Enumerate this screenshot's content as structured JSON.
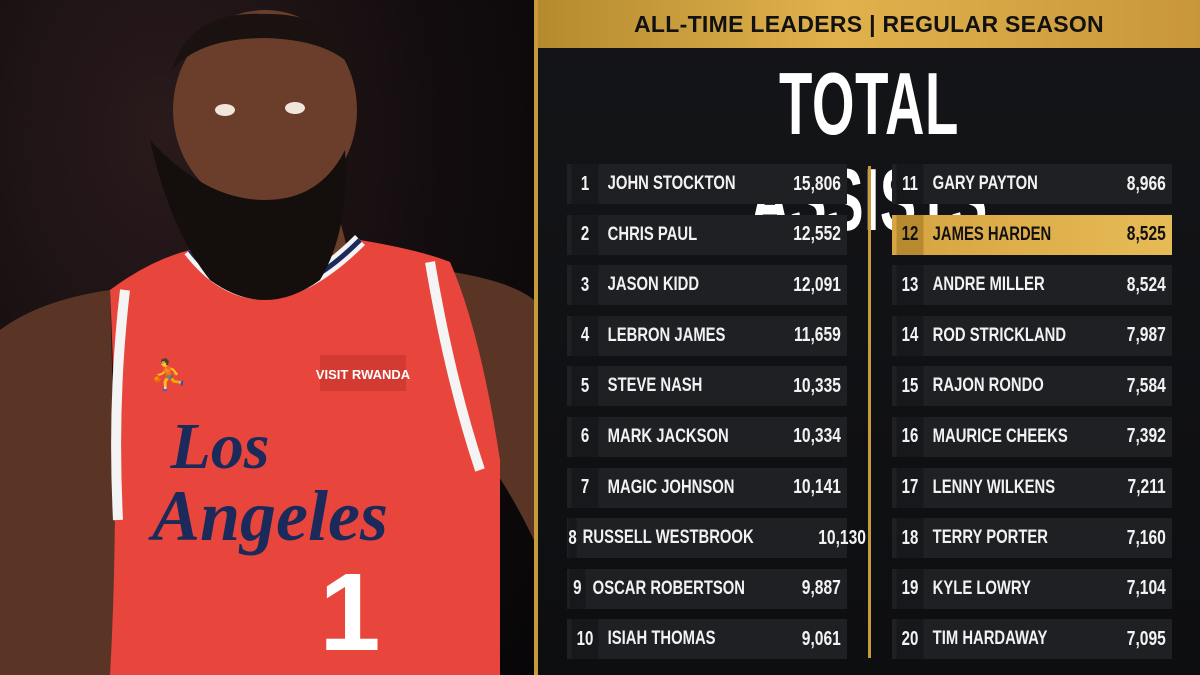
{
  "header": "ALL-TIME LEADERS | REGULAR SEASON",
  "title": "TOTAL ASSISTS",
  "photo": {
    "jersey_sponsor": "VISIT RWANDA",
    "jersey_city_line1": "Los",
    "jersey_city_line2": "Angeles",
    "jersey_number": "1"
  },
  "colors": {
    "gold": "#c79a3a",
    "row_bg": "#1f2024",
    "highlight": "#e0b24d",
    "jersey_red": "#e8463c",
    "jersey_navy": "#1b2a5a"
  },
  "leaders_left": [
    {
      "rank": "1",
      "name": "JOHN STOCKTON",
      "value": "15,806"
    },
    {
      "rank": "2",
      "name": "CHRIS PAUL",
      "value": "12,552"
    },
    {
      "rank": "3",
      "name": "JASON KIDD",
      "value": "12,091"
    },
    {
      "rank": "4",
      "name": "LEBRON JAMES",
      "value": "11,659"
    },
    {
      "rank": "5",
      "name": "STEVE NASH",
      "value": "10,335"
    },
    {
      "rank": "6",
      "name": "MARK JACKSON",
      "value": "10,334"
    },
    {
      "rank": "7",
      "name": "MAGIC JOHNSON",
      "value": "10,141"
    },
    {
      "rank": "8",
      "name": "RUSSELL WESTBROOK",
      "value": "10,130"
    },
    {
      "rank": "9",
      "name": "OSCAR ROBERTSON",
      "value": "9,887"
    },
    {
      "rank": "10",
      "name": "ISIAH THOMAS",
      "value": "9,061"
    }
  ],
  "leaders_right": [
    {
      "rank": "11",
      "name": "GARY PAYTON",
      "value": "8,966"
    },
    {
      "rank": "12",
      "name": "JAMES HARDEN",
      "value": "8,525",
      "highlight": true
    },
    {
      "rank": "13",
      "name": "ANDRE MILLER",
      "value": "8,524"
    },
    {
      "rank": "14",
      "name": "ROD STRICKLAND",
      "value": "7,987"
    },
    {
      "rank": "15",
      "name": "RAJON RONDO",
      "value": "7,584"
    },
    {
      "rank": "16",
      "name": "MAURICE CHEEKS",
      "value": "7,392"
    },
    {
      "rank": "17",
      "name": "LENNY WILKENS",
      "value": "7,211"
    },
    {
      "rank": "18",
      "name": "TERRY PORTER",
      "value": "7,160"
    },
    {
      "rank": "19",
      "name": "KYLE LOWRY",
      "value": "7,104"
    },
    {
      "rank": "20",
      "name": "TIM HARDAWAY",
      "value": "7,095"
    }
  ]
}
